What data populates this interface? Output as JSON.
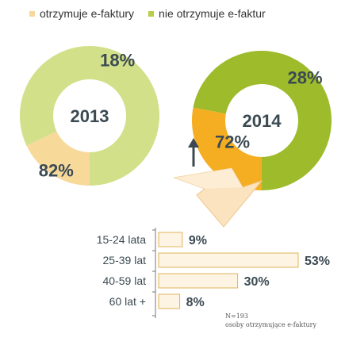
{
  "legend": {
    "items": [
      {
        "label": "otrzymuje e-faktury",
        "color": "#F7D9A0"
      },
      {
        "label": "nie otrzymuje e-faktur",
        "color": "#B6CE4A"
      }
    ]
  },
  "chart_data": [
    {
      "type": "donut",
      "center_label": "2013",
      "slices": [
        {
          "name": "otrzymuje e-faktury",
          "value": 18,
          "label": "18%",
          "color": "#F7D99A"
        },
        {
          "name": "nie otrzymuje e-faktur",
          "value": 82,
          "label": "82%",
          "color": "#D3E08A"
        }
      ]
    },
    {
      "type": "donut",
      "center_label": "2014",
      "slices": [
        {
          "name": "otrzymuje e-faktury",
          "value": 28,
          "label": "28%",
          "color": "#F5AE22"
        },
        {
          "name": "nie otrzymuje e-faktur",
          "value": 72,
          "label": "72%",
          "color": "#9DBB2A"
        }
      ],
      "annotation": {
        "arrow": "up",
        "applies_to": "28%"
      }
    },
    {
      "type": "bar",
      "orientation": "horizontal",
      "categories": [
        "15-24 lata",
        "25-39 lat",
        "40-59 lat",
        "60 lat +"
      ],
      "values": [
        9,
        53,
        30,
        8
      ],
      "labels": [
        "9%",
        "53%",
        "30%",
        "8%"
      ],
      "xlim": [
        0,
        53
      ],
      "bar_color": "#FDF4E3",
      "bar_border": "#E0B45A"
    }
  ],
  "note": {
    "line1": "N=193",
    "line2": "osoby otrzymujące e-faktury"
  }
}
